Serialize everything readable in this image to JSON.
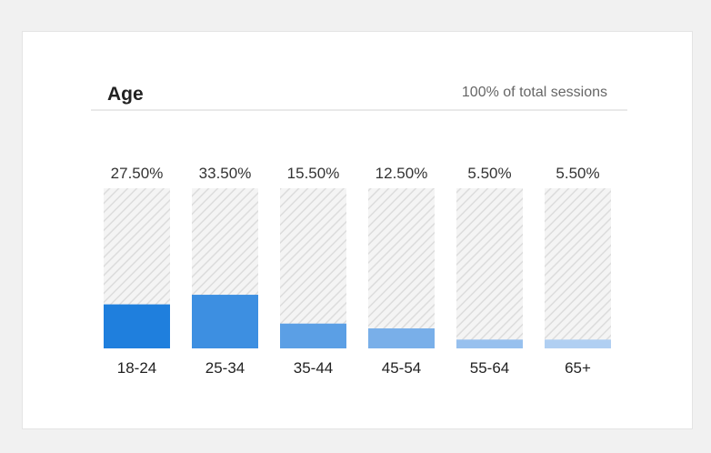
{
  "header": {
    "title": "Age",
    "subtitle": "100% of total sessions"
  },
  "colors": {
    "page_background": "#f1f1f1",
    "card_background": "#ffffff",
    "track_hatch": "#d9d9d9",
    "bar_colors": [
      "#1f7fdd",
      "#3d8fe1",
      "#5b9fe5",
      "#79afe9",
      "#97c0ee",
      "#b0cff2"
    ]
  },
  "chart_data": {
    "type": "bar",
    "title": "Age",
    "categories": [
      "18-24",
      "25-34",
      "35-44",
      "45-54",
      "55-64",
      "65+"
    ],
    "values": [
      27.5,
      33.5,
      15.5,
      12.5,
      5.5,
      5.5
    ],
    "value_labels": [
      "27.50%",
      "33.50%",
      "15.50%",
      "12.50%",
      "5.50%",
      "5.50%"
    ],
    "ylim": [
      0,
      100
    ],
    "unit": "%",
    "grid": false,
    "legend": "none"
  }
}
